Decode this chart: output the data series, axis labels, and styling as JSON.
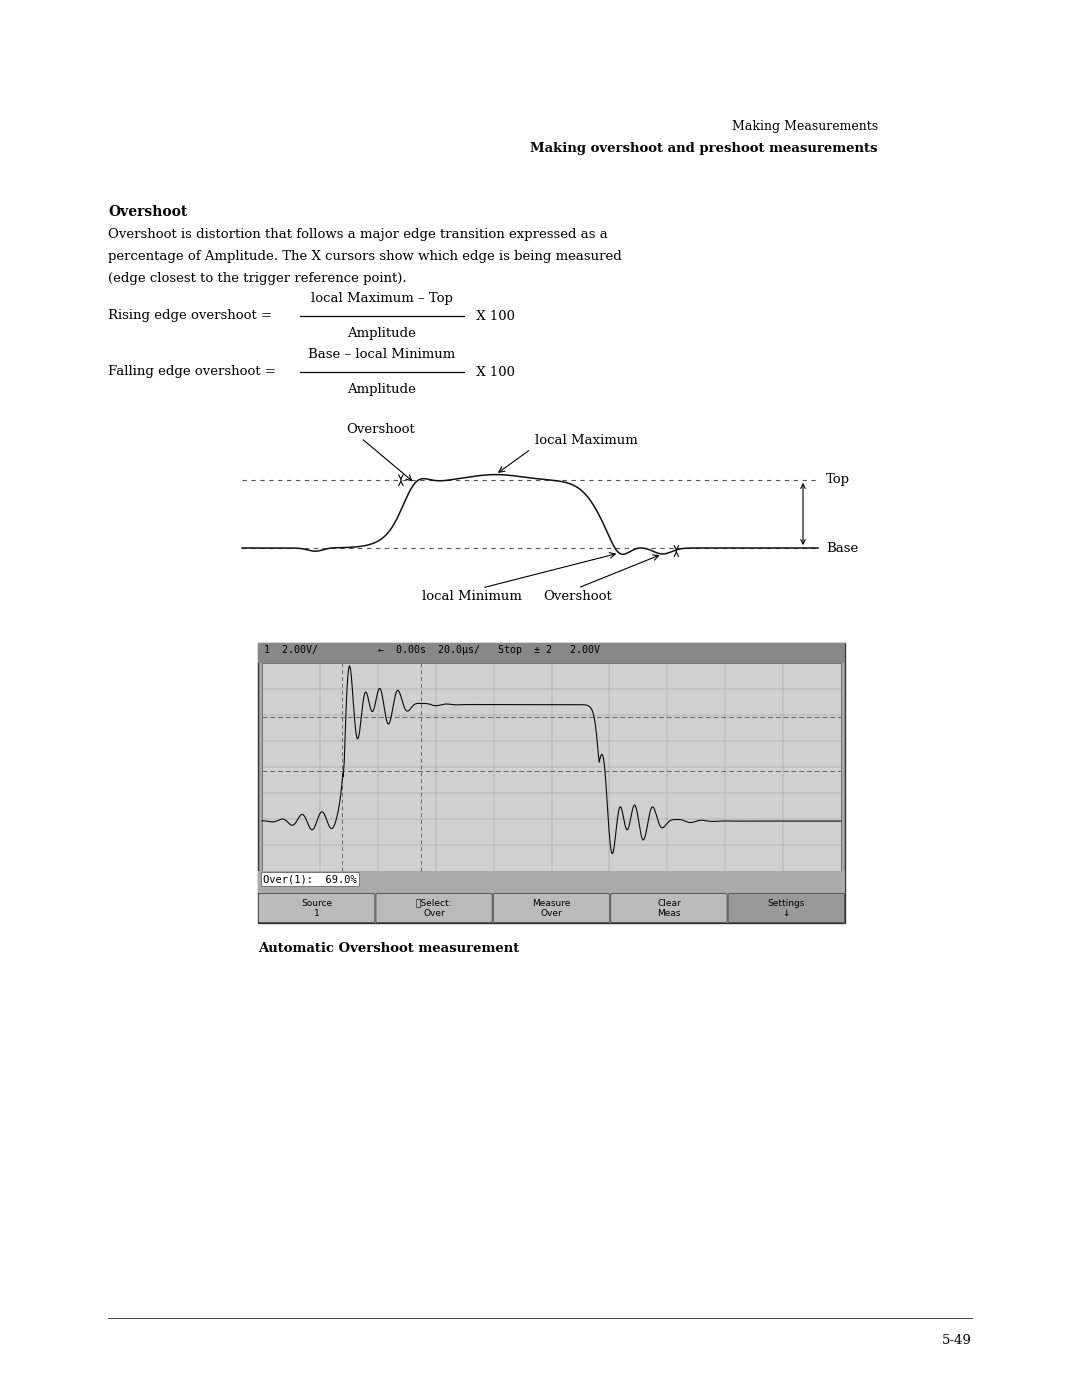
{
  "page_width": 10.8,
  "page_height": 13.97,
  "bg_color": "#ffffff",
  "header_line1": "Making Measurements",
  "header_line2": "Making overshoot and preshoot measurements",
  "section_title": "Overshoot",
  "body_line1": "Overshoot is distortion that follows a major edge transition expressed as a",
  "body_line2": "percentage of Amplitude. The X cursors show which edge is being measured",
  "body_line3": "(edge closest to the trigger reference point).",
  "formula1_left": "Rising edge overshoot = ",
  "formula1_num": "local Maximum – Top",
  "formula1_den": "Amplitude",
  "formula1_right": " X 100",
  "formula2_left": "Falling edge overshoot = ",
  "formula2_num": "Base – local Minimum",
  "formula2_den": "Amplitude",
  "formula2_right": " X 100",
  "diag_overshoot_top": "Overshoot",
  "diag_local_max": "local Maximum",
  "diag_top_label": "Top",
  "diag_base_label": "Base",
  "diag_local_min": "local Minimum",
  "diag_overshoot_bot": "Overshoot",
  "scope_header": "1  2.00V/          ←  0.00s  20.0µs/   Stop  ± 2   2.00V",
  "scope_measurement": "Over(1):  69.0%",
  "scope_btn1": "Source\n1",
  "scope_btn2": "⭮Select:\nOver",
  "scope_btn3": "Measure\nOver",
  "scope_btn4": "Clear\nMeas",
  "scope_btn5": "Settings\n↓",
  "caption": "Automatic Overshoot measurement",
  "page_number": "5-49",
  "text_color": "#000000"
}
